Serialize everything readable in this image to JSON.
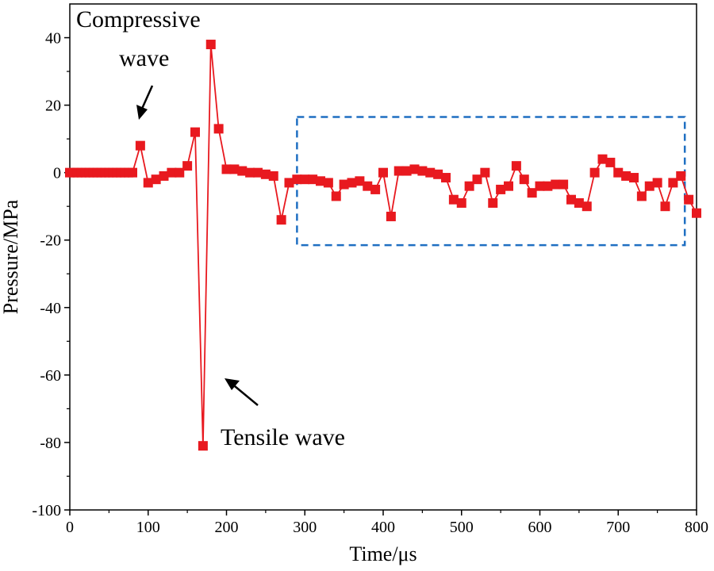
{
  "chart_data": {
    "type": "line",
    "title": "",
    "xlabel": "Time/μs",
    "ylabel": "Pressure/MPa",
    "xlim": [
      0,
      800
    ],
    "ylim": [
      -100,
      50
    ],
    "x_ticks": [
      0,
      100,
      200,
      300,
      400,
      500,
      600,
      700,
      800
    ],
    "y_ticks": [
      -100,
      -80,
      -60,
      -40,
      -20,
      0,
      20,
      40
    ],
    "grid": false,
    "series": [
      {
        "name": "Pressure",
        "color": "#e8191f",
        "marker": "square",
        "x": [
          0,
          5,
          10,
          15,
          20,
          25,
          30,
          35,
          40,
          45,
          50,
          55,
          60,
          65,
          70,
          75,
          80,
          90,
          100,
          110,
          120,
          130,
          140,
          150,
          160,
          170,
          180,
          190,
          200,
          210,
          220,
          230,
          240,
          250,
          260,
          270,
          280,
          290,
          300,
          310,
          320,
          330,
          340,
          350,
          360,
          370,
          380,
          390,
          400,
          410,
          420,
          430,
          440,
          450,
          460,
          470,
          480,
          490,
          500,
          510,
          520,
          530,
          540,
          550,
          560,
          570,
          580,
          590,
          600,
          610,
          620,
          630,
          640,
          650,
          660,
          670,
          680,
          690,
          700,
          710,
          720,
          730,
          740,
          750,
          760,
          770,
          780,
          790,
          800
        ],
        "values": [
          0,
          0,
          0,
          0,
          0,
          0,
          0,
          0,
          0,
          0,
          0,
          0,
          0,
          0,
          0,
          0,
          0,
          8,
          -3,
          -2,
          -1,
          0,
          0,
          2,
          12,
          -81,
          38,
          13,
          1,
          1,
          0.5,
          0,
          0,
          -0.5,
          -1,
          -14,
          -3,
          -2,
          -2,
          -2,
          -2.5,
          -3,
          -7,
          -3.5,
          -3,
          -2.5,
          -4,
          -5,
          0,
          -13,
          0.5,
          0.5,
          1,
          0.5,
          0,
          -0.5,
          -1.5,
          -8,
          -9,
          -4,
          -2,
          0,
          -9,
          -5,
          -4,
          2,
          -2,
          -6,
          -4,
          -4,
          -3.5,
          -3.5,
          -8,
          -9,
          -10,
          0,
          4,
          3,
          0,
          -1,
          -1.5,
          -7,
          -4,
          -3,
          -10,
          -3,
          -1,
          -8,
          -12
        ]
      }
    ],
    "annotations": [
      {
        "text_line1": "Compressive",
        "text_line2": "wave",
        "points_to_x": 90,
        "points_to_y": 8
      },
      {
        "text": "Tensile wave",
        "points_to_x": 170,
        "points_to_y": -81
      }
    ],
    "highlight_box": {
      "x0": 290,
      "x1": 785,
      "y0": -21.5,
      "y1": 16.5,
      "color": "#1f6fc2",
      "style": "dashed"
    }
  }
}
